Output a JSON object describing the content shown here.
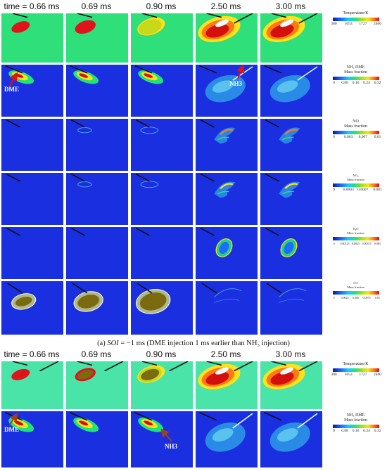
{
  "top_times": [
    "time = 0.66 ms",
    "0.69 ms",
    "0.90 ms",
    "2.50 ms",
    "3.00 ms"
  ],
  "bottom_times": [
    "time = 0.66 ms",
    "0.69 ms",
    "0.90 ms",
    "2.50 ms",
    "3.00 ms"
  ],
  "annotations": {
    "dme": "DME",
    "nh3": "NH3"
  },
  "caption": {
    "prefix": "(a) ",
    "soi": "SOI",
    "text": " = −1 ms (DME injection 1 ms earlier than NH₃ injection)"
  },
  "legends": [
    {
      "title": [
        "Temperature/K"
      ],
      "ticks": [
        "380",
        "1053",
        "1727",
        "2400"
      ]
    },
    {
      "title": [
        "NH₃ DME",
        "Mass fraction"
      ],
      "ticks": [
        "0",
        "0.08",
        "0.16",
        "0.24",
        "0.32"
      ]
    },
    {
      "title": [
        "NO",
        "Mass fraction"
      ],
      "ticks": [
        "0",
        "0.003",
        "0.007",
        "0.01"
      ]
    },
    {
      "title": [
        "NO₂",
        "Mass fraction"
      ],
      "ticks": [
        "0",
        "0.0003",
        "0.0007",
        "0.001"
      ]
    },
    {
      "title": [
        "N₂O",
        "Mass fraction"
      ],
      "ticks": [
        "0",
        "0.00125",
        "0.0025",
        "0.00375",
        "0.005"
      ]
    },
    {
      "title": [
        "CO",
        "Mass fraction"
      ],
      "ticks": [
        "0",
        "0.0025",
        "0.005",
        "0.0075",
        "0.01"
      ]
    }
  ],
  "bottom_legends": [
    {
      "title": [
        "Temperature/K"
      ],
      "ticks": [
        "380",
        "1053",
        "1727",
        "2400"
      ]
    },
    {
      "title": [
        "NH₃ DME",
        "Mass fraction"
      ],
      "ticks": [
        "0",
        "0.08",
        "0.16",
        "0.24",
        "0.32"
      ]
    }
  ],
  "colors": {
    "background_green": "#2fe07a",
    "background_blue": "#1a2fe0",
    "accent_red": "#e0121a"
  }
}
